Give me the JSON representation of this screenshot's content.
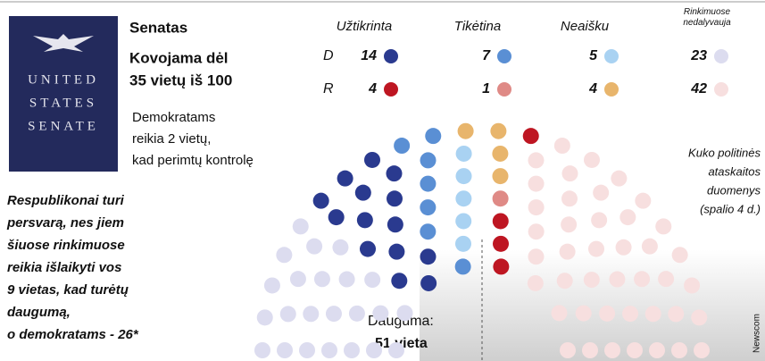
{
  "chart_data": {
    "type": "parliament",
    "title": "Senatas",
    "subtitle": [
      "Kovojama dėl",
      "35 vietų iš 100"
    ],
    "seal": [
      "UNITED",
      "STATES",
      "SENATE"
    ],
    "categories": [
      "Užtikrinta",
      "Tikėtina",
      "Neaišku",
      "Rinkimuose nedalyvauja"
    ],
    "series": [
      {
        "name": "D",
        "values": [
          14,
          7,
          5,
          23
        ],
        "colors": [
          "#2a3a8f",
          "#5a8fd4",
          "#a9d2f2",
          "#dcdcef"
        ]
      },
      {
        "name": "R",
        "values": [
          4,
          1,
          4,
          42
        ],
        "colors": [
          "#be1622",
          "#df8a86",
          "#e8b56c",
          "#f7dfdf"
        ]
      }
    ],
    "note_dem": [
      "Demokratams",
      "reikia 2 vietų,",
      "kad perimtų kontrolę"
    ],
    "note_rep": [
      "Respublikonai turi",
      "persvarą, nes jiem",
      "šiuose rinkimuose",
      "reikia išlaikyti vos",
      "9 vietas, kad turėtų",
      "daugumą,",
      "o demokratams - 26*"
    ],
    "source": [
      "Kuko politinės",
      "ataskaitos",
      "duomenys",
      "(spalio 4 d.)"
    ],
    "majority": [
      "Dauguma:",
      "51 vieta"
    ],
    "credit": "Newscom"
  }
}
